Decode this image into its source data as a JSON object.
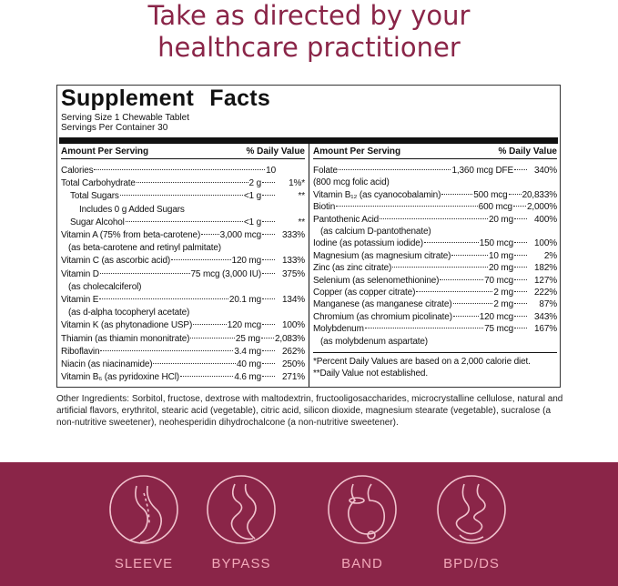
{
  "header": {
    "title_line1": "Take as directed by your",
    "title_line2": "healthcare practitioner"
  },
  "facts": {
    "title": "Supplement Facts",
    "serving_size": "Serving Size 1 Chewable Tablet",
    "servings_per_container": "Servings Per Container 30",
    "columns": [
      {
        "amount_header": "Amount Per Serving",
        "dv_header": "% Daily Value",
        "rows": [
          {
            "name": "Calories",
            "amount": "10"
          },
          {
            "name": "Total Carbohydrate",
            "amount": "2 g",
            "dv": "1%*",
            "subrows": [
              {
                "name": "Total Sugars",
                "amount": "<1 g",
                "dv": "**",
                "subrows": [
                  {
                    "name": "Includes 0 g Added Sugars"
                  }
                ]
              },
              {
                "name": "Sugar Alcohol",
                "amount": "<1 g",
                "dv": "**"
              }
            ]
          },
          {
            "name": "Vitamin A (75% from beta-carotene)",
            "amount": "3,000 mcg",
            "dv": "333%",
            "note": "(as beta-carotene and retinyl palmitate)"
          },
          {
            "name": "Vitamin C (as ascorbic acid)",
            "amount": "120 mg",
            "dv": "133%"
          },
          {
            "name": "Vitamin D",
            "amount": "75 mcg (3,000 IU)",
            "dv": "375%",
            "note": "(as cholecalciferol)"
          },
          {
            "name": "Vitamin E",
            "amount": "20.1 mg",
            "dv": "134%",
            "note": "(as d-alpha tocopheryl acetate)"
          },
          {
            "name": "Vitamin K (as phytonadione USP)",
            "amount": "120 mcg",
            "dv": "100%"
          },
          {
            "name": "Thiamin (as thiamin mononitrate)",
            "amount": "25 mg",
            "dv": "2,083%"
          },
          {
            "name": "Riboflavin",
            "amount": "3.4 mg",
            "dv": "262%"
          },
          {
            "name": "Niacin (as niacinamide)",
            "amount": "40 mg",
            "dv": "250%"
          },
          {
            "name": "Vitamin B₆ (as pyridoxine HCl)",
            "amount": "4.6 mg",
            "dv": "271%"
          }
        ]
      },
      {
        "amount_header": "Amount Per Serving",
        "dv_header": "% Daily Value",
        "rows": [
          {
            "name": "Folate",
            "amount": "1,360 mcg DFE",
            "dv": "340%",
            "amount_note": "(800 mcg folic acid)"
          },
          {
            "name": "Vitamin B₁₂ (as cyanocobalamin)",
            "amount": "500 mcg",
            "dv": "20,833%"
          },
          {
            "name": "Biotin",
            "amount": "600 mcg",
            "dv": "2,000%"
          },
          {
            "name": "Pantothenic Acid",
            "amount": "20 mg",
            "dv": "400%",
            "note": "(as calcium D-pantothenate)"
          },
          {
            "name": "Iodine (as potassium iodide)",
            "amount": "150 mcg",
            "dv": "100%"
          },
          {
            "name": "Magnesium (as magnesium citrate)",
            "amount": "10 mg",
            "dv": "2%"
          },
          {
            "name": "Zinc (as zinc citrate)",
            "amount": "20 mg",
            "dv": "182%"
          },
          {
            "name": "Selenium (as selenomethionine)",
            "amount": "70 mcg",
            "dv": "127%"
          },
          {
            "name": "Copper (as copper citrate)",
            "amount": "2 mg",
            "dv": "222%"
          },
          {
            "name": "Manganese (as manganese citrate)",
            "amount": "2 mg",
            "dv": "87%"
          },
          {
            "name": "Chromium (as chromium picolinate)",
            "amount": "120 mcg",
            "dv": "343%"
          },
          {
            "name": "Molybdenum",
            "amount": "75 mcg",
            "dv": "167%",
            "note": "(as molybdenum aspartate)"
          }
        ],
        "footnotes": [
          "*Percent Daily Values are based on a 2,000 calorie diet.",
          "**Daily Value not established."
        ]
      }
    ]
  },
  "other_ingredients": "Other Ingredients: Sorbitol, fructose, dextrose with maltodextrin, fructooligosaccharides, microcrystalline cellulose, natural and artificial flavors, erythritol, stearic acid (vegetable), citric acid, silicon dioxide, magnesium stearate (vegetable), sucralose (a non-nutritive sweetener), neohesperidin dihydrochalcone (a non-nutritive sweetener).",
  "procedures": [
    "SLEEVE",
    "BYPASS",
    "BAND",
    "BPD/DS"
  ]
}
